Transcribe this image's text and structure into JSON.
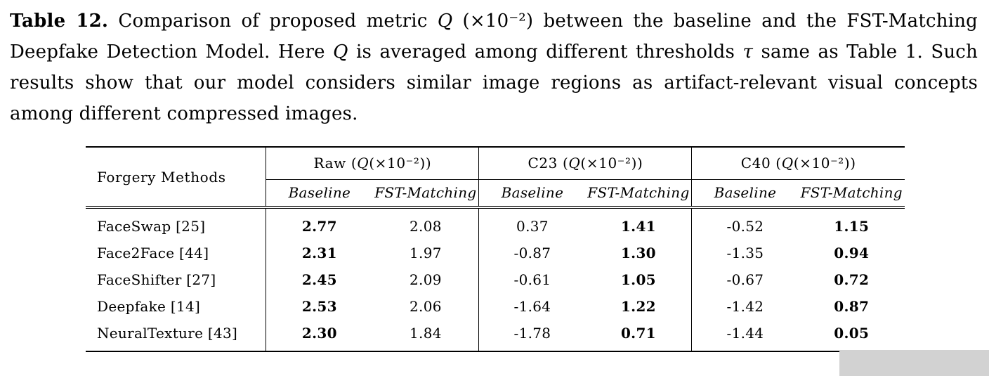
{
  "colors": {
    "background": "#ffffff",
    "text": "#000000",
    "artifact_gray": "#d2d2d2"
  },
  "caption": {
    "label": "Table 12.",
    "part1": " Comparison of proposed metric ",
    "math1": "Q",
    "part2": " (×10⁻²) between the baseline and the FST-Matching Deepfake Detection Model. Here ",
    "math2": "Q",
    "part3": " is averaged among different thresholds ",
    "math3": "τ",
    "part4": " same as Table 1. Such results show that our model considers similar image regions as artifact-relevant visual concepts among different compressed images."
  },
  "table": {
    "row_header": "Forgery Methods",
    "groups": [
      {
        "name": "Raw",
        "paren_open": "(",
        "q": "Q",
        "tail": "(×10⁻²))"
      },
      {
        "name": "C23",
        "paren_open": "(",
        "q": "Q",
        "tail": "(×10⁻²))"
      },
      {
        "name": "C40",
        "paren_open": "(",
        "q": "Q",
        "tail": "(×10⁻²))"
      }
    ],
    "subheaders": [
      "Baseline",
      "FST-Matching"
    ],
    "bold_columns": [
      0,
      3,
      5
    ],
    "rows": [
      {
        "method": "FaceSwap [25]",
        "values": [
          "2.77",
          "2.08",
          "0.37",
          "1.41",
          "-0.52",
          "1.15"
        ]
      },
      {
        "method": "Face2Face [44]",
        "values": [
          "2.31",
          "1.97",
          "-0.87",
          "1.30",
          "-1.35",
          "0.94"
        ]
      },
      {
        "method": "FaceShifter [27]",
        "values": [
          "2.45",
          "2.09",
          "-0.61",
          "1.05",
          "-0.67",
          "0.72"
        ]
      },
      {
        "method": "Deepfake [14]",
        "values": [
          "2.53",
          "2.06",
          "-1.64",
          "1.22",
          "-1.42",
          "0.87"
        ]
      },
      {
        "method": "NeuralTexture [43]",
        "values": [
          "2.30",
          "1.84",
          "-1.78",
          "0.71",
          "-1.44",
          "0.05"
        ]
      }
    ]
  }
}
